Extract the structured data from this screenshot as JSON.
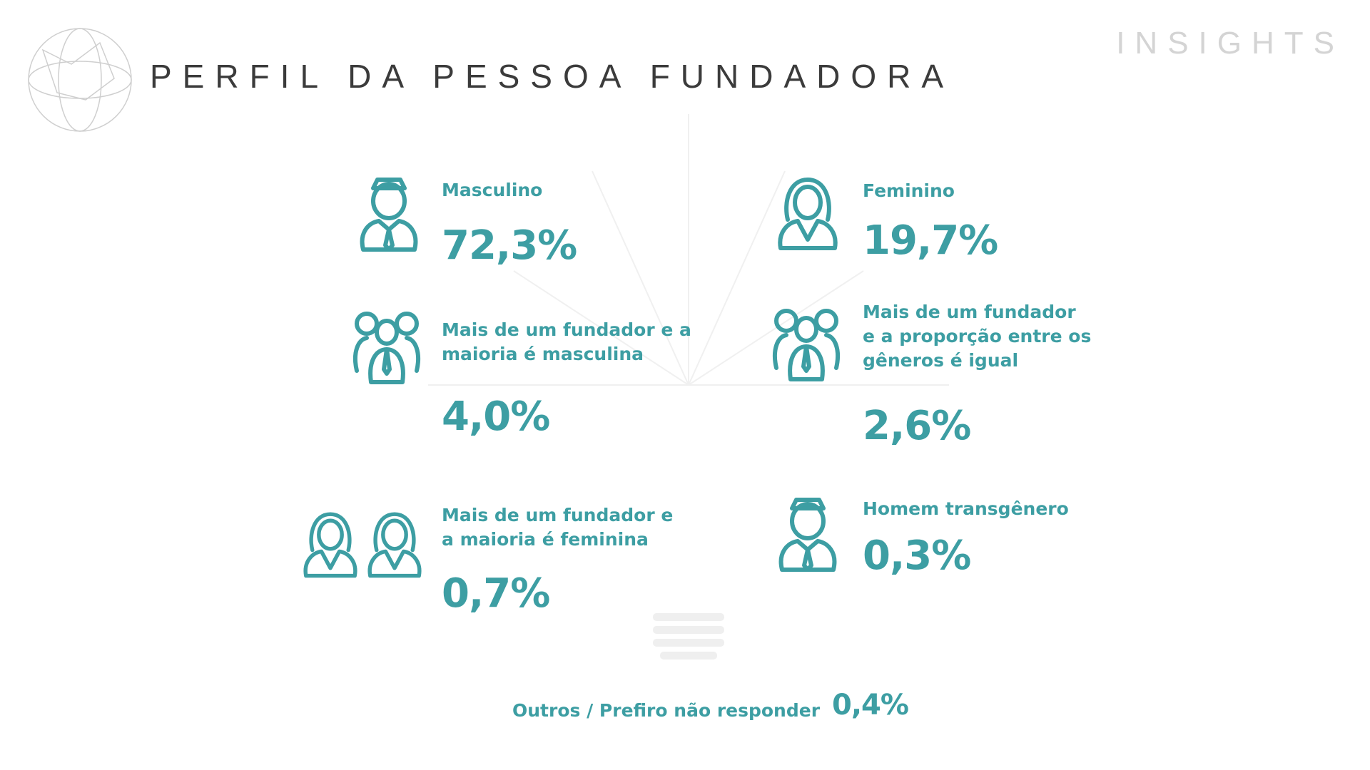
{
  "header": {
    "title": "PERFIL DA PESSOA FUNDADORA",
    "brand": "INSIGHTS"
  },
  "items": [
    {
      "label": [
        "Masculino"
      ],
      "value": "72,3%"
    },
    {
      "label": [
        "Feminino"
      ],
      "value": "19,7%"
    },
    {
      "label": [
        "Mais de um fundador e a",
        "maioria é masculina"
      ],
      "value": "4,0%"
    },
    {
      "label": [
        "Mais de um fundador",
        "e a proporção entre os",
        "gêneros é igual"
      ],
      "value": "2,6%"
    },
    {
      "label": [
        "Mais de um fundador e",
        "a maioria é feminina"
      ],
      "value": "0,7%"
    },
    {
      "label": [
        "Homem transgênero"
      ],
      "value": "0,3%"
    }
  ],
  "footer": {
    "label": "Outros / Prefiro não responder",
    "value": "0,4%"
  }
}
